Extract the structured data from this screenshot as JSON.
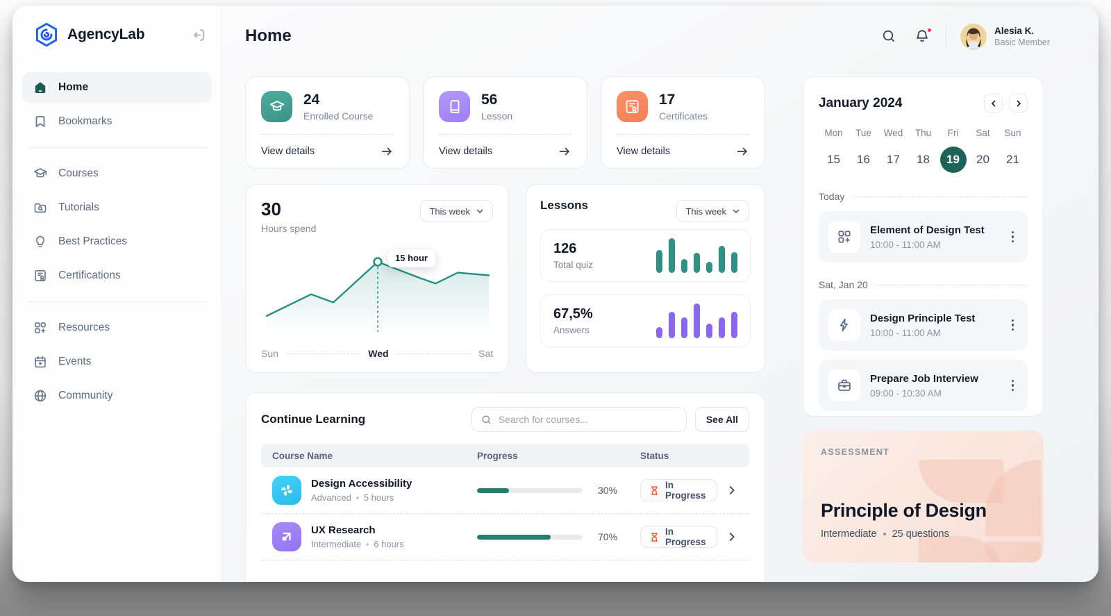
{
  "sidebar": {
    "brand": "AgencyLab",
    "top": [
      {
        "label": "Home"
      },
      {
        "label": "Bookmarks"
      }
    ],
    "middle": [
      {
        "label": "Courses"
      },
      {
        "label": "Tutorials"
      },
      {
        "label": "Best Practices"
      },
      {
        "label": "Certifications"
      }
    ],
    "bottom": [
      {
        "label": "Resources"
      },
      {
        "label": "Events"
      },
      {
        "label": "Community"
      }
    ]
  },
  "header": {
    "title": "Home",
    "user_name": "Alesia K.",
    "user_role": "Basic Member"
  },
  "stats": {
    "cards": [
      {
        "value": "24",
        "label": "Enrolled Course",
        "link": "View details"
      },
      {
        "value": "56",
        "label": "Lesson",
        "link": "View details"
      },
      {
        "value": "17",
        "label": "Certificates",
        "link": "View details"
      }
    ]
  },
  "hours": {
    "value": "30",
    "label": "Hours spend",
    "filter": "This week",
    "tooltip": "15 hour",
    "axis": [
      "Sun",
      "Wed",
      "Sat"
    ]
  },
  "lessons": {
    "title": "Lessons",
    "filter": "This week",
    "quiz": {
      "value": "126",
      "label": "Total quiz"
    },
    "answers": {
      "value": "67,5%",
      "label": "Answers"
    }
  },
  "learning": {
    "title": "Continue Learning",
    "search_placeholder": "Search for courses...",
    "see_all": "See All",
    "columns": [
      "Course Name",
      "Progress",
      "Status"
    ],
    "rows": [
      {
        "name": "Design Accessibility",
        "level": "Advanced",
        "duration": "5 hours",
        "progress": "30%",
        "progress_pct": 30,
        "status": "In Progress"
      },
      {
        "name": "UX Research",
        "level": "Intermediate",
        "duration": "6 hours",
        "progress": "70%",
        "progress_pct": 70,
        "status": "In Progress"
      }
    ]
  },
  "calendar": {
    "month": "January 2024",
    "weekdays": [
      "Mon",
      "Tue",
      "Wed",
      "Thu",
      "Fri",
      "Sat",
      "Sun"
    ],
    "dates": [
      "15",
      "16",
      "17",
      "18",
      "19",
      "20",
      "21"
    ],
    "selected_date": "19",
    "today_label": "Today",
    "events_today": [
      {
        "title": "Element of Design Test",
        "time": "10:00 - 11:00 AM",
        "icon": "grid-plus-icon"
      }
    ],
    "saturday_label": "Sat, Jan 20",
    "events_saturday": [
      {
        "title": "Design Principle Test",
        "time": "10:00 - 11:00 AM",
        "icon": "lightning-icon"
      },
      {
        "title": "Prepare Job Interview",
        "time": "09:00 - 10:30 AM",
        "icon": "briefcase-icon"
      }
    ]
  },
  "assessment": {
    "tag": "ASSESSMENT",
    "title": "Principle of Design",
    "level": "Intermediate",
    "questions": "25 questions"
  },
  "colors": {
    "accent_teal": "#2A9184",
    "dark_teal": "#1F6358",
    "purple": "#8B66F0",
    "orange": "#F2582C",
    "cyan": "#35C6F4",
    "red_dot": "#ED2E4F"
  },
  "chart_data": [
    {
      "type": "line",
      "title": "Hours spend — this week",
      "x_ticks": [
        "Sun",
        "Wed",
        "Sat"
      ],
      "ylim": [
        0,
        18
      ],
      "series": [
        {
          "name": "hours",
          "x_frac": [
            0,
            0.2,
            0.3,
            0.5,
            0.69,
            0.76,
            0.86,
            1.0
          ],
          "values": [
            5,
            9,
            7.5,
            15,
            12,
            11,
            13,
            12.5
          ]
        }
      ],
      "highlight": {
        "index": 3,
        "label": "15 hour",
        "x_label": "Wed"
      }
    },
    {
      "type": "bar",
      "title": "Total quiz",
      "values": [
        30,
        45,
        18,
        26,
        15,
        35,
        27
      ],
      "color": "#2E9183"
    },
    {
      "type": "bar",
      "title": "Answers",
      "values": [
        15,
        34,
        27,
        45,
        19,
        27,
        34
      ],
      "color": "#8B66F0"
    }
  ]
}
